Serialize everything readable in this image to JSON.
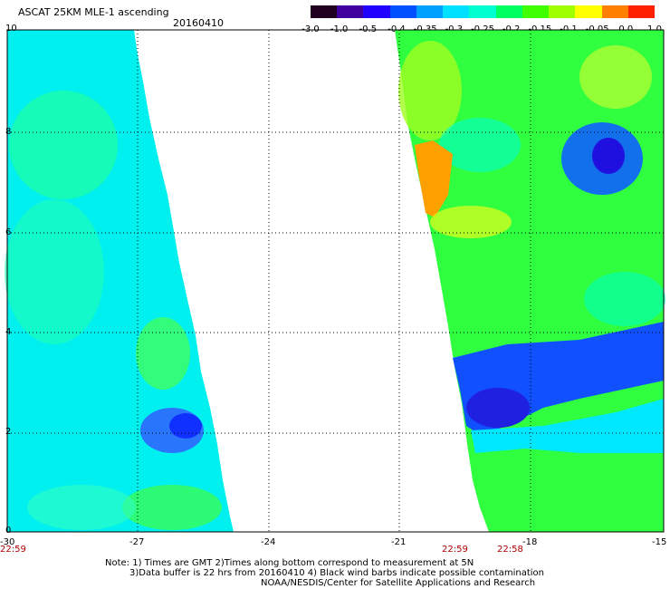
{
  "header": {
    "title": "ASCAT 25KM MLE-1 ascending",
    "date": "20160410"
  },
  "colorbar": {
    "labels": [
      "-3.0",
      "-1.0",
      "-0.5",
      "-0.4",
      "-0.35",
      "-0.3",
      "-0.25",
      "-0.2",
      "-0.15",
      "-0.1",
      "-0.05",
      "0.0",
      "1.0"
    ],
    "colors": [
      "#200020",
      "#4000a0",
      "#2000ff",
      "#0050ff",
      "#00a0ff",
      "#00e0ff",
      "#00ffd0",
      "#00ff60",
      "#40ff00",
      "#a0ff00",
      "#ffff00",
      "#ff8000",
      "#ff2000"
    ]
  },
  "axes": {
    "x_ticks": [
      "-30",
      "-27",
      "-24",
      "-21",
      "-18",
      "-15"
    ],
    "y_ticks": [
      "10",
      "8",
      "6",
      "4",
      "2",
      "0"
    ]
  },
  "times": {
    "left": "22:59",
    "right_a": "22:59",
    "right_b": "22:58"
  },
  "notes": {
    "line1": "Note: 1) Times are GMT 2)Times along bottom correspond to measurement at 5N",
    "line2": "3)Data buffer is 22 hrs from 20160410 4) Black wind barbs indicate possible contamination",
    "line3": "NOAA/NESDIS/Center for Satellite Applications and Research"
  }
}
